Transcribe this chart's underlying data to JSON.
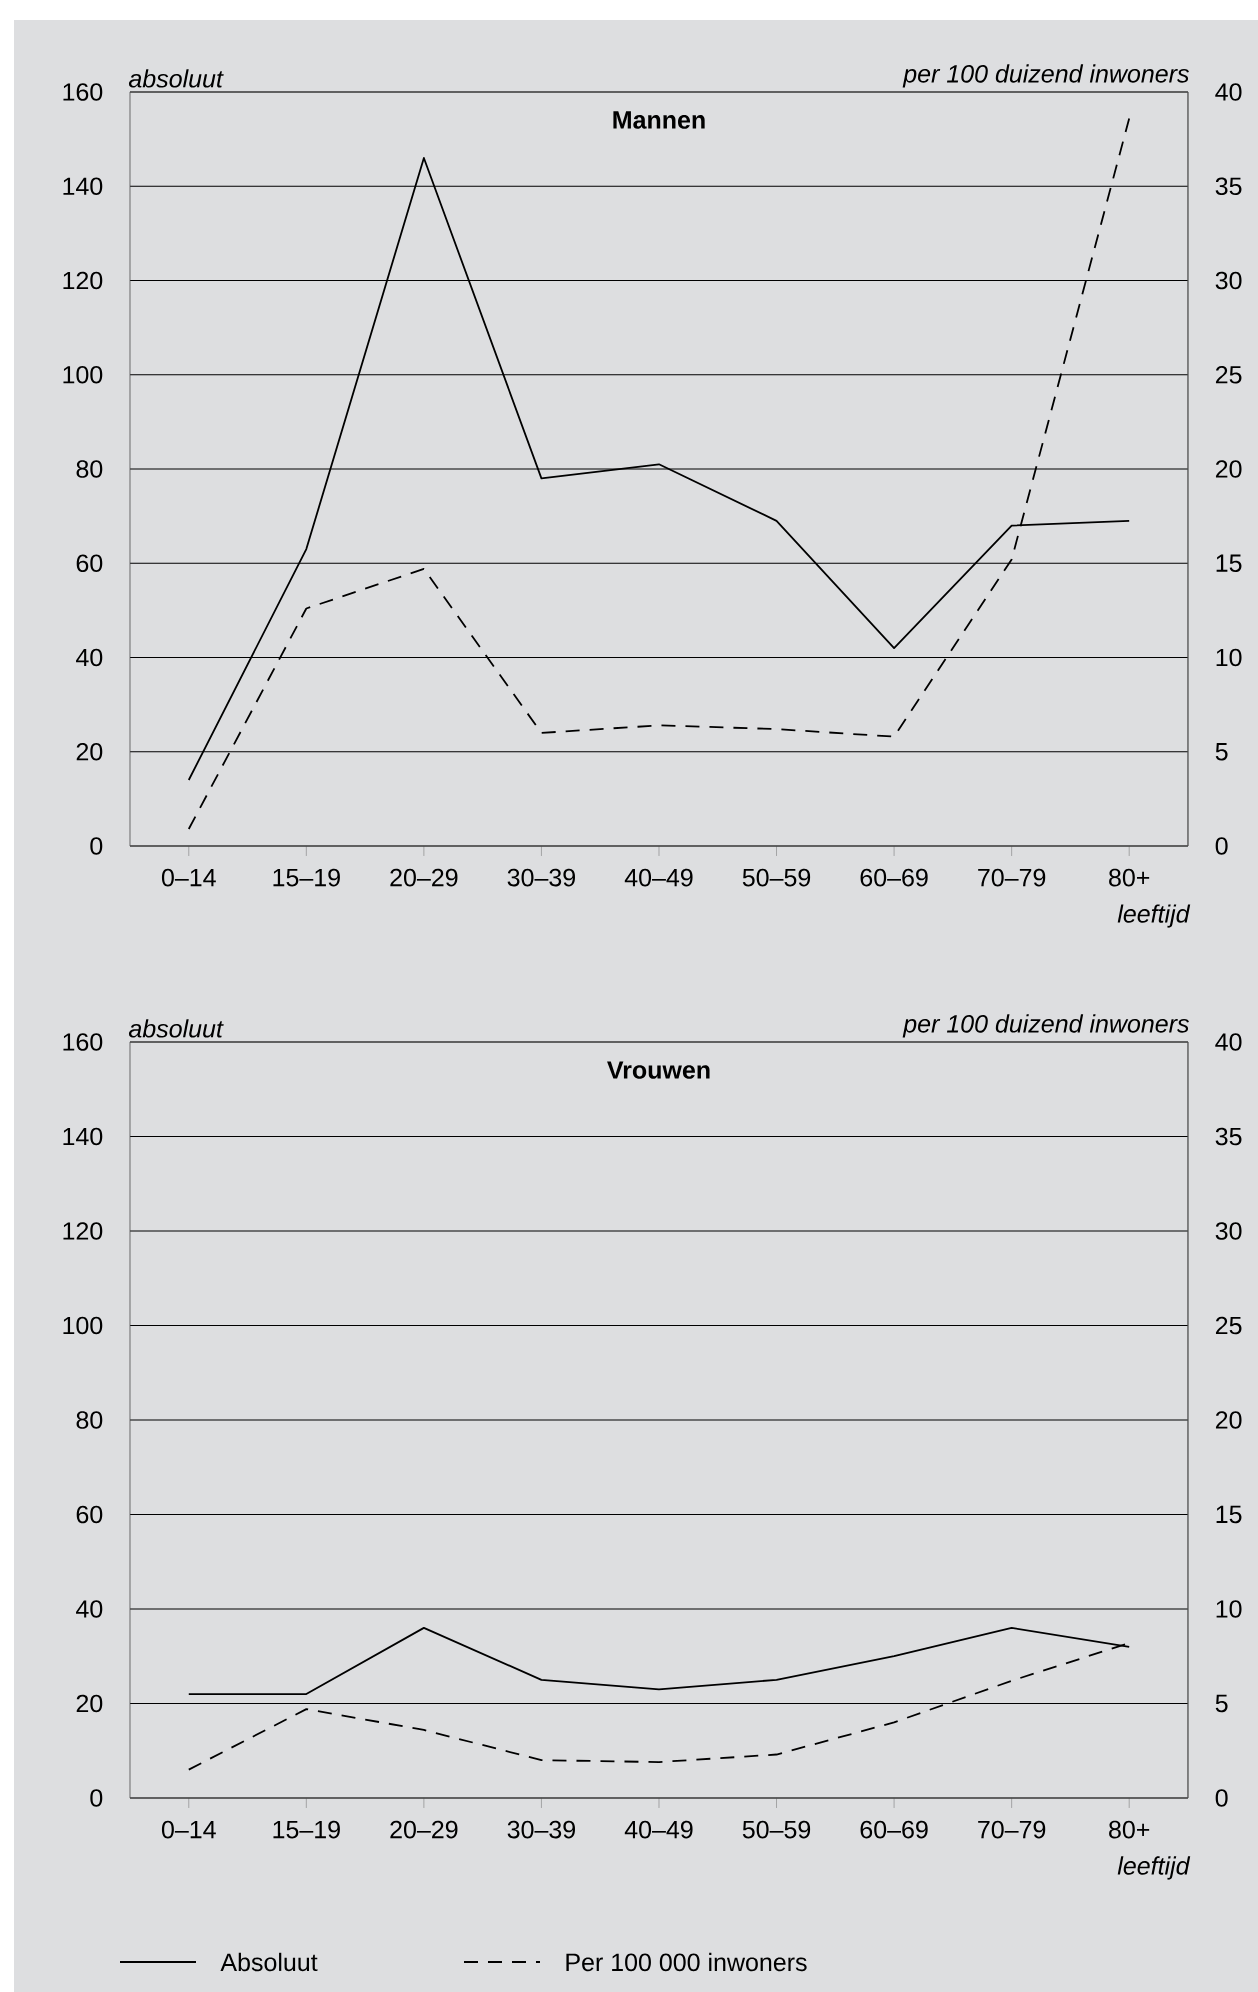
{
  "chart_data": [
    {
      "type": "line",
      "title": "Mannen",
      "ylabel": "absoluut",
      "y2label": "per 100 duizend inwoners",
      "xlabel": "leeftijd",
      "categories": [
        "0–14",
        "15–19",
        "20–29",
        "30–39",
        "40–49",
        "50–59",
        "60–69",
        "70–79",
        "80+"
      ],
      "series": [
        {
          "color": "#000000",
          "line_style": "solid",
          "values": [
            14,
            63,
            146,
            78,
            81,
            69,
            42,
            68,
            69
          ]
        },
        {
          "color": "#000000",
          "line_style": "dashed",
          "axis": "y2",
          "values": [
            0.9,
            12.6,
            14.7,
            6.0,
            6.4,
            6.2,
            5.8,
            15.2,
            38.6
          ]
        }
      ],
      "ylim": [
        0,
        160
      ],
      "yticks": [
        0,
        20,
        40,
        60,
        80,
        100,
        120,
        140,
        160
      ],
      "y2lim": [
        0,
        40
      ],
      "y2ticks": [
        0,
        5,
        10,
        15,
        20,
        25,
        30,
        35,
        40
      ],
      "grid": "y"
    },
    {
      "type": "line",
      "title": "Vrouwen",
      "ylabel": "absoluut",
      "y2label": "per 100 duizend inwoners",
      "xlabel": "leeftijd",
      "categories": [
        "0–14",
        "15–19",
        "20–29",
        "30–39",
        "40–49",
        "50–59",
        "60–69",
        "70–79",
        "80+"
      ],
      "series": [
        {
          "name": "Absoluut",
          "color": "#000000",
          "line_style": "solid",
          "values": [
            22,
            22,
            36,
            25,
            23,
            25,
            30,
            36,
            32
          ]
        },
        {
          "name": "Per 100 000 inwoners",
          "color": "#000000",
          "line_style": "dashed",
          "axis": "y2",
          "values": [
            1.5,
            4.7,
            3.6,
            2.0,
            1.9,
            2.3,
            4.0,
            6.2,
            8.2
          ]
        }
      ],
      "ylim": [
        0,
        160
      ],
      "yticks": [
        0,
        20,
        40,
        60,
        80,
        100,
        120,
        140,
        160
      ],
      "y2lim": [
        0,
        40
      ],
      "y2ticks": [
        0,
        5,
        10,
        15,
        20,
        25,
        30,
        35,
        40
      ],
      "grid": "y",
      "legend": "bottom"
    }
  ]
}
